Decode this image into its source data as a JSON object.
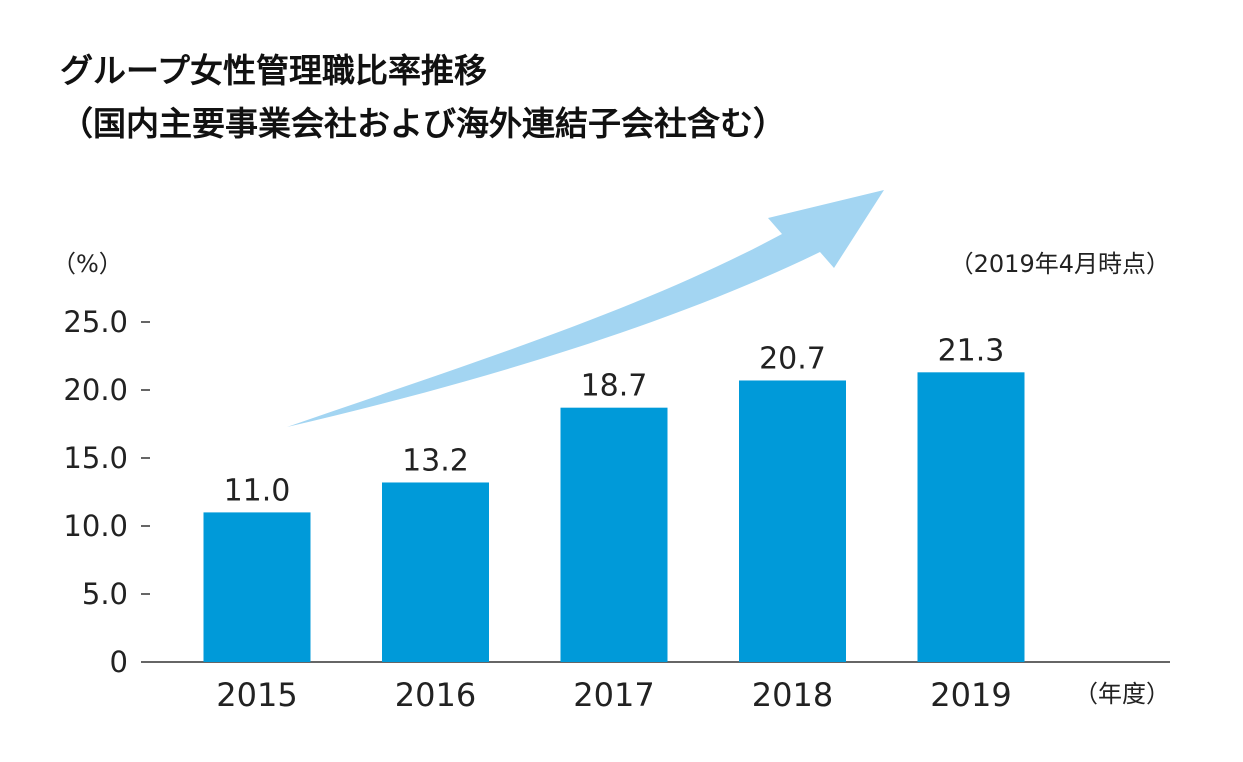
{
  "chart_data": {
    "type": "bar",
    "title_lines": [
      "グループ女性管理職比率推移",
      "（国内主要事業会社および海外連結子会社含む）"
    ],
    "ylabel": "（%）",
    "xlabel": "（年度）",
    "note": "（2019年4月時点）",
    "categories": [
      "2015",
      "2016",
      "2017",
      "2018",
      "2019"
    ],
    "values": [
      11.0,
      13.2,
      18.7,
      20.7,
      21.3
    ],
    "value_labels": [
      "11.0",
      "13.2",
      "18.7",
      "20.7",
      "21.3"
    ],
    "ylim": [
      0,
      25
    ],
    "yticks": [
      0,
      5,
      10,
      15,
      20,
      25
    ],
    "ytick_labels": [
      "0",
      "5.0",
      "10.0",
      "15.0",
      "20.0",
      "25.0"
    ],
    "grid": false,
    "annotation": "upward-trend-arrow",
    "colors": {
      "bar": "#009ad9",
      "arrow": "#a3d5f2",
      "axis": "#333333"
    }
  }
}
